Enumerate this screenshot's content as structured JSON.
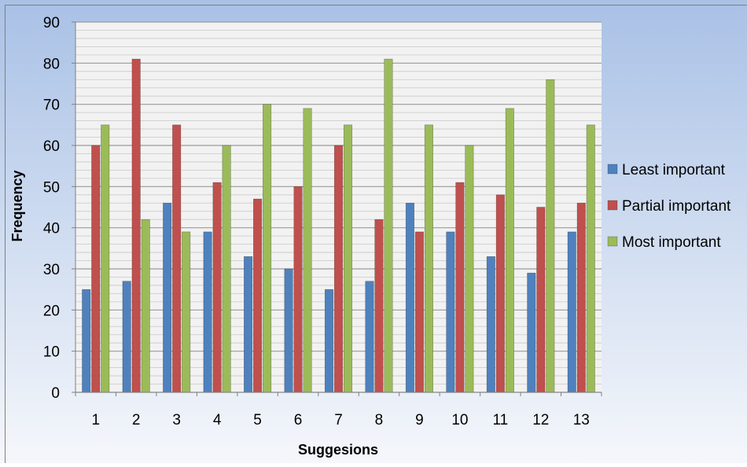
{
  "chart_data": {
    "type": "bar",
    "title": "",
    "xlabel": "Suggesions",
    "ylabel": "Frequency",
    "ylim": [
      0,
      90
    ],
    "yticks": [
      0,
      10,
      20,
      30,
      40,
      50,
      60,
      70,
      80,
      90
    ],
    "categories": [
      "1",
      "2",
      "3",
      "4",
      "5",
      "6",
      "7",
      "8",
      "9",
      "10",
      "11",
      "12",
      "13"
    ],
    "series": [
      {
        "name": "Least important",
        "color": "#4f81bd",
        "values": [
          25,
          27,
          46,
          39,
          33,
          30,
          25,
          27,
          46,
          39,
          33,
          29,
          39
        ]
      },
      {
        "name": "Partial important",
        "color": "#c0504d",
        "values": [
          60,
          81,
          65,
          51,
          47,
          50,
          60,
          42,
          39,
          51,
          48,
          45,
          46
        ]
      },
      {
        "name": "Most important",
        "color": "#9bbb59",
        "values": [
          65,
          42,
          39,
          60,
          70,
          69,
          65,
          81,
          65,
          60,
          69,
          76,
          65
        ]
      }
    ],
    "grid": true,
    "legend_position": "right",
    "colors": {
      "background_top": "#a9c1e6",
      "background_bottom": "#f5f7fb",
      "plot_background": "#f2f2f2",
      "gridline": "#a6a6a6"
    }
  }
}
